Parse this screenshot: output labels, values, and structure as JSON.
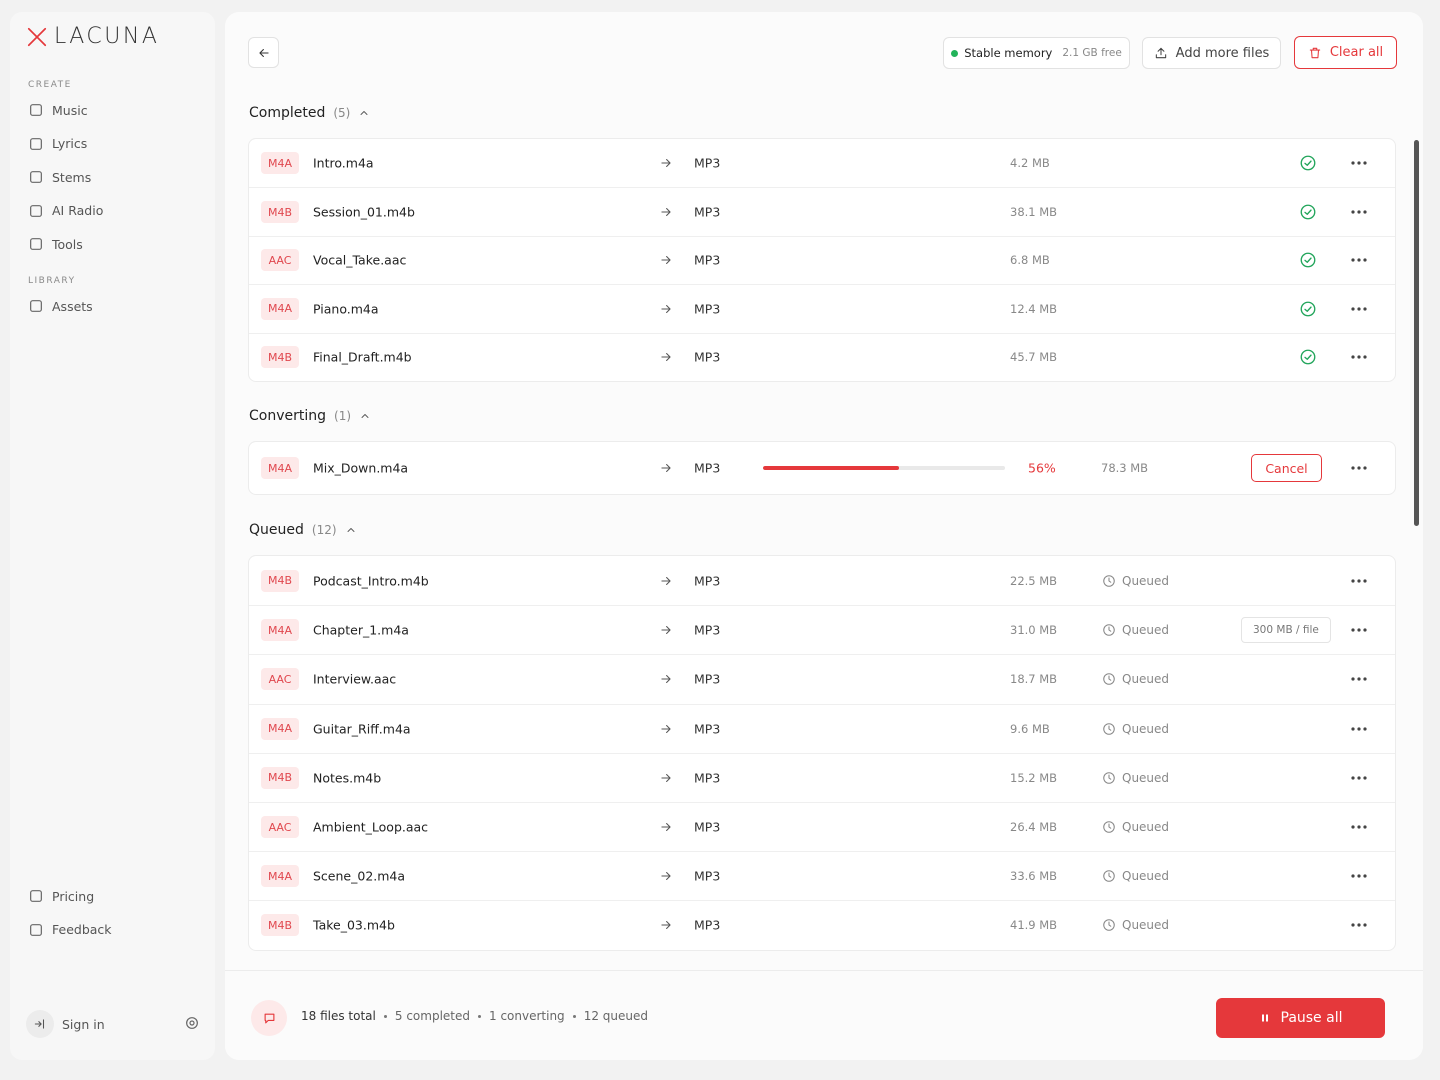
{
  "sidebar": {
    "logo": "LACUNA",
    "create_label": "CREATE",
    "create_items": [
      "Music",
      "Lyrics",
      "Stems",
      "AI Radio",
      "Tools"
    ],
    "library_label": "LIBRARY",
    "library_items": [
      "Assets"
    ],
    "bottom_items": [
      "Pricing",
      "Feedback"
    ],
    "sign_in": "Sign in"
  },
  "toolbar": {
    "memory_status": "Stable memory",
    "memory_free": "2.1 GB free",
    "add_files": "Add more files",
    "clear_all": "Clear all"
  },
  "sections": [
    {
      "title": "Completed",
      "count": "(5)",
      "rows": [
        {
          "format": "M4A",
          "name": "Intro.m4a",
          "target": "MP3",
          "size": "4.2 MB"
        },
        {
          "format": "M4B",
          "name": "Session_01.m4b",
          "target": "MP3",
          "size": "38.1 MB"
        },
        {
          "format": "AAC",
          "name": "Vocal_Take.aac",
          "target": "MP3",
          "size": "6.8 MB"
        },
        {
          "format": "M4A",
          "name": "Piano.m4a",
          "target": "MP3",
          "size": "12.4 MB"
        },
        {
          "format": "M4B",
          "name": "Final_Draft.m4b",
          "target": "MP3",
          "size": "45.7 MB"
        }
      ]
    },
    {
      "title": "Converting",
      "count": "(1)",
      "rows": [
        {
          "format": "M4A",
          "name": "Mix_Down.m4a",
          "target": "MP3",
          "progress": 56,
          "progress_label": "56%",
          "size": "78.3 MB",
          "action": "Cancel"
        }
      ]
    },
    {
      "title": "Queued",
      "count": "(12)",
      "rows": [
        {
          "format": "M4B",
          "name": "Podcast_Intro.m4b",
          "target": "MP3",
          "size": "22.5 MB",
          "status": "Queued"
        },
        {
          "format": "M4A",
          "name": "Chapter_1.m4a",
          "target": "MP3",
          "size": "31.0 MB",
          "status": "Queued",
          "limit": "300 MB / file"
        },
        {
          "format": "AAC",
          "name": "Interview.aac",
          "target": "MP3",
          "size": "18.7 MB",
          "status": "Queued"
        },
        {
          "format": "M4A",
          "name": "Guitar_Riff.m4a",
          "target": "MP3",
          "size": "9.6 MB",
          "status": "Queued"
        },
        {
          "format": "M4B",
          "name": "Notes.m4b",
          "target": "MP3",
          "size": "15.2 MB",
          "status": "Queued"
        },
        {
          "format": "AAC",
          "name": "Ambient_Loop.aac",
          "target": "MP3",
          "size": "26.4 MB",
          "status": "Queued"
        },
        {
          "format": "M4A",
          "name": "Scene_02.m4a",
          "target": "MP3",
          "size": "33.6 MB",
          "status": "Queued"
        },
        {
          "format": "M4B",
          "name": "Take_03.m4b",
          "target": "MP3",
          "size": "41.9 MB",
          "status": "Queued"
        }
      ]
    }
  ],
  "footer": {
    "total": "18 files total",
    "completed": "5 completed",
    "converting": "1 converting",
    "queued": "12 queued",
    "pause_all": "Pause all"
  }
}
